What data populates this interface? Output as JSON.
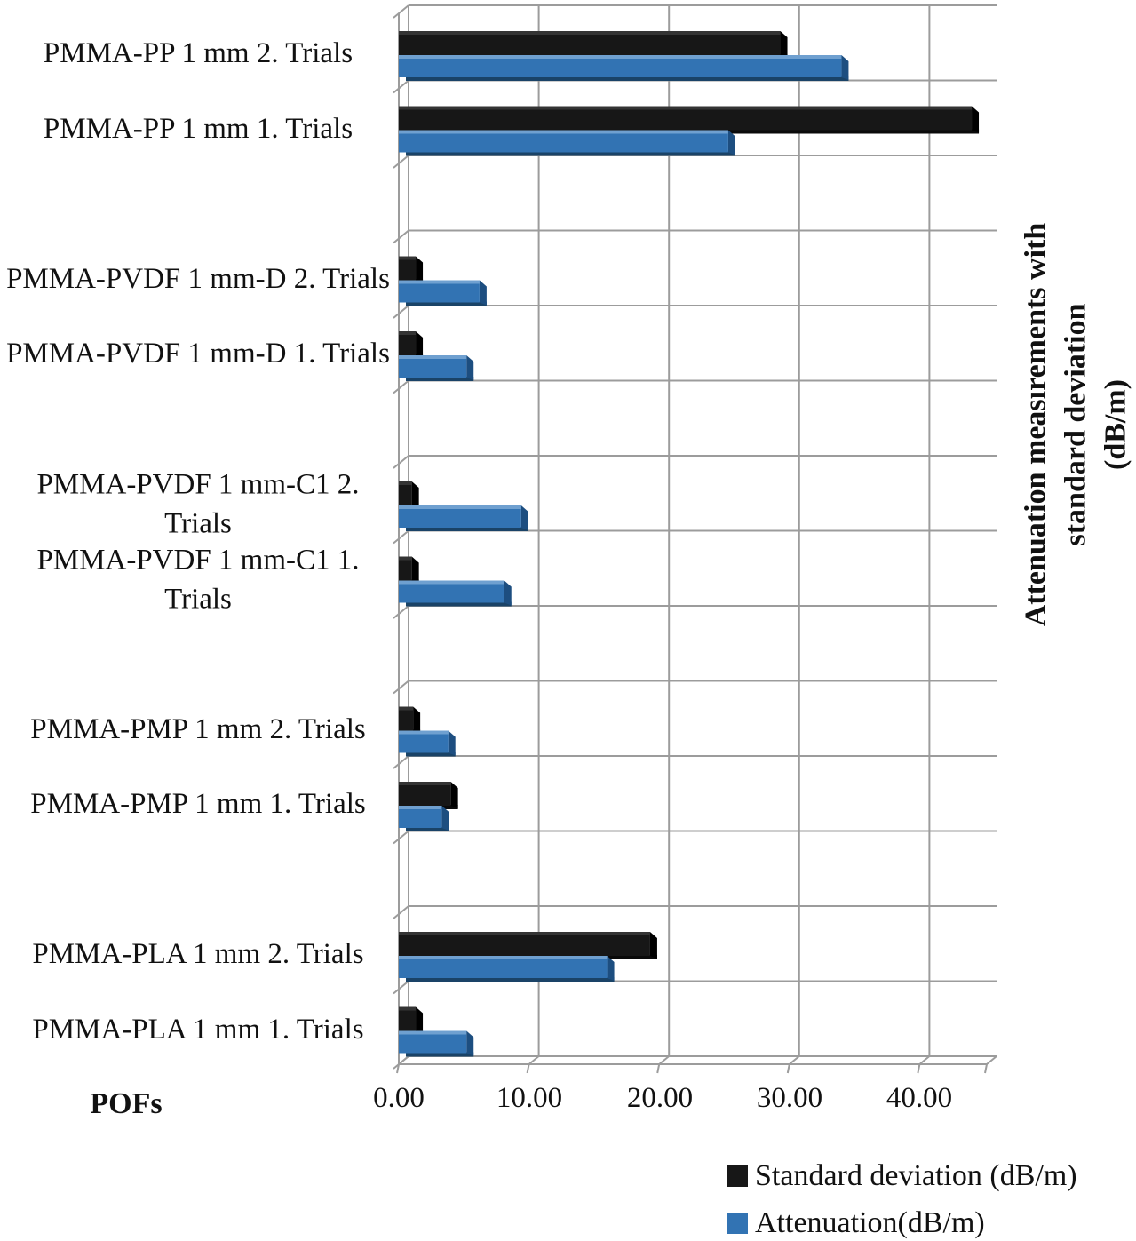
{
  "page": {
    "background": "#ffffff"
  },
  "chart_data": {
    "type": "bar",
    "orientation": "horizontal",
    "style": "3d-clustered",
    "title": "",
    "categories": [
      "PMMA-PP 1 mm 2. Trials",
      "PMMA-PP 1 mm 1. Trials",
      "PMMA-PVDF 1 mm-D 2. Trials",
      "PMMA-PVDF 1 mm-D 1. Trials",
      "PMMA-PVDF 1 mm-C1 2. Trials",
      "PMMA-PVDF 1 mm-C1 1. Trials",
      "PMMA-PMP 1 mm 2. Trials",
      "PMMA-PMP 1 mm 1. Trials",
      "PMMA-PLA 1 mm 2. Trials",
      "PMMA-PLA 1 mm 1. Trials"
    ],
    "series": [
      {
        "name": "Standard deviation (dB/m)",
        "color": "#171717",
        "color_top": "#343434",
        "color_cap": "#000000",
        "color_shadow": "#0a0a0a",
        "values": [
          29.3,
          44.0,
          1.3,
          1.3,
          1.0,
          1.0,
          1.1,
          4.0,
          19.3,
          1.3
        ]
      },
      {
        "name": "Attenuation(dB/m)",
        "color": "#3273B3",
        "color_top": "#6FA0D0",
        "color_cap": "#1D4E80",
        "color_shadow": "#1A4367",
        "values": [
          34.0,
          25.3,
          6.2,
          5.2,
          9.4,
          8.1,
          3.8,
          3.3,
          16.0,
          5.2
        ]
      }
    ],
    "value_axis": {
      "min": 0,
      "max": 45,
      "tick_interval": 10,
      "ticks": [
        0,
        10,
        20,
        30,
        40
      ],
      "tick_labels": [
        "0.00",
        "10.00",
        "20.00",
        "30.00",
        "40.00"
      ],
      "title": "Attenuation measırements with standard deviation (dB/m)",
      "title_lines": [
        "Attenuation measırements with",
        "standard deviation",
        "(dB/m)"
      ]
    },
    "category_axis": {
      "title": "POFs"
    },
    "legend": {
      "position": "bottom-right",
      "entries": [
        "Standard deviation (dB/m)",
        "Attenuation(dB/m)"
      ]
    },
    "grid": {
      "color": "#9c9c9c",
      "row_slots": 14,
      "category_row_index": [
        0,
        1,
        3,
        4,
        6,
        7,
        9,
        10,
        12,
        13
      ]
    }
  }
}
